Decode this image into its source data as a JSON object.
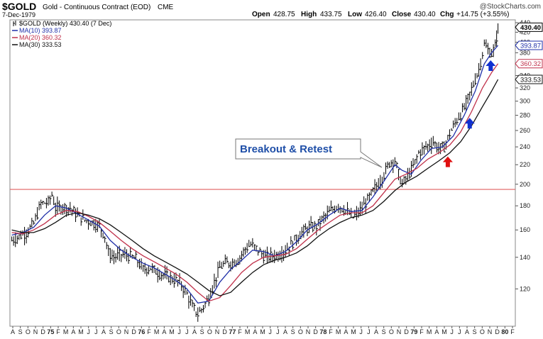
{
  "header": {
    "symbol": "$GOLD",
    "name": "Gold - Continuous Contract (EOD)",
    "exchange": "CME",
    "date": "7-Dec-1979",
    "ohlc": {
      "open_label": "Open",
      "open": "428.75",
      "high_label": "High",
      "high": "433.75",
      "low_label": "Low",
      "low": "426.40",
      "close_label": "Close",
      "close": "430.40",
      "chg_label": "Chg",
      "chg": "+14.75 (+3.55%)",
      "chg_arrow": "▲"
    },
    "watermark": "@StockCharts.com"
  },
  "legend": [
    {
      "text": "$GOLD (Weekly) 430.40 (7 Dec)",
      "color": "#000000",
      "icon": "bar-icon"
    },
    {
      "text": "MA(10) 393.87",
      "color": "#1f2fa8"
    },
    {
      "text": "MA(20) 360.32",
      "color": "#c0304a"
    },
    {
      "text": "MA(30) 333.53",
      "color": "#111111"
    }
  ],
  "annotation": {
    "text": "Breakout & Retest"
  },
  "chart_data": {
    "type": "line",
    "y_scale": "log",
    "ylim": [
      100,
      440
    ],
    "y_ticks": [
      120,
      140,
      160,
      180,
      200,
      220,
      240,
      260,
      280,
      300,
      320,
      340,
      360,
      380,
      400,
      420,
      440
    ],
    "x_range": [
      "1974-08",
      "1980-01"
    ],
    "x_tick_labels": [
      "A",
      "S",
      "O",
      "N",
      "D",
      "75",
      "F",
      "M",
      "A",
      "M",
      "J",
      "J",
      "A",
      "S",
      "O",
      "N",
      "D",
      "76",
      "F",
      "M",
      "A",
      "M",
      "J",
      "J",
      "A",
      "S",
      "O",
      "N",
      "D",
      "77",
      "F",
      "M",
      "A",
      "M",
      "J",
      "J",
      "A",
      "S",
      "O",
      "N",
      "D",
      "78",
      "F",
      "M",
      "A",
      "M",
      "J",
      "J",
      "A",
      "S",
      "O",
      "N",
      "D",
      "79",
      "F",
      "M",
      "A",
      "M",
      "J",
      "J",
      "A",
      "S",
      "O",
      "N",
      "D",
      "80",
      "F"
    ],
    "horizontal_line": {
      "value": 195,
      "color": "#e06060"
    },
    "price_labels": [
      {
        "text": "430.40",
        "value": 430.4,
        "color": "#000000",
        "fill": true
      },
      {
        "text": "393.87",
        "value": 393.87,
        "color": "#1f2fa8"
      },
      {
        "text": "360.32",
        "value": 360.32,
        "color": "#c0304a"
      },
      {
        "text": "333.53",
        "value": 333.53,
        "color": "#111111"
      }
    ],
    "arrows": [
      {
        "x": 1979.38,
        "value": 222,
        "color": "#e01010",
        "direction": "up"
      },
      {
        "x": 1979.62,
        "value": 268,
        "color": "#1030d0",
        "direction": "up"
      },
      {
        "x": 1979.85,
        "value": 355,
        "color": "#1030d0",
        "direction": "up"
      }
    ],
    "series": [
      {
        "name": "$GOLD (Weekly)",
        "kind": "bars",
        "color": "#000000",
        "points": [
          [
            1974.6,
            152
          ],
          [
            1974.68,
            155
          ],
          [
            1974.76,
            158
          ],
          [
            1974.84,
            165
          ],
          [
            1974.92,
            182
          ],
          [
            1975.0,
            183
          ],
          [
            1975.04,
            190
          ],
          [
            1975.08,
            178
          ],
          [
            1975.16,
            179
          ],
          [
            1975.24,
            178
          ],
          [
            1975.32,
            172
          ],
          [
            1975.4,
            168
          ],
          [
            1975.48,
            166
          ],
          [
            1975.56,
            163
          ],
          [
            1975.62,
            155
          ],
          [
            1975.66,
            143
          ],
          [
            1975.72,
            140
          ],
          [
            1975.8,
            142
          ],
          [
            1975.88,
            141
          ],
          [
            1975.96,
            139
          ],
          [
            1976.04,
            132
          ],
          [
            1976.12,
            133
          ],
          [
            1976.2,
            130
          ],
          [
            1976.28,
            128
          ],
          [
            1976.36,
            126
          ],
          [
            1976.44,
            124
          ],
          [
            1976.52,
            117
          ],
          [
            1976.58,
            110
          ],
          [
            1976.64,
            106
          ],
          [
            1976.7,
            110
          ],
          [
            1976.76,
            115
          ],
          [
            1976.82,
            124
          ],
          [
            1976.88,
            133
          ],
          [
            1976.94,
            136
          ],
          [
            1977.0,
            136
          ],
          [
            1977.08,
            138
          ],
          [
            1977.16,
            146
          ],
          [
            1977.22,
            149
          ],
          [
            1977.3,
            145
          ],
          [
            1977.38,
            140
          ],
          [
            1977.46,
            141
          ],
          [
            1977.54,
            142
          ],
          [
            1977.62,
            146
          ],
          [
            1977.7,
            152
          ],
          [
            1977.78,
            158
          ],
          [
            1977.86,
            162
          ],
          [
            1977.94,
            163
          ],
          [
            1978.02,
            170
          ],
          [
            1978.1,
            176
          ],
          [
            1978.18,
            180
          ],
          [
            1978.26,
            176
          ],
          [
            1978.34,
            170
          ],
          [
            1978.42,
            176
          ],
          [
            1978.5,
            185
          ],
          [
            1978.58,
            196
          ],
          [
            1978.66,
            206
          ],
          [
            1978.74,
            222
          ],
          [
            1978.8,
            225
          ],
          [
            1978.84,
            210
          ],
          [
            1978.88,
            200
          ],
          [
            1978.94,
            208
          ],
          [
            1979.0,
            218
          ],
          [
            1979.06,
            233
          ],
          [
            1979.14,
            240
          ],
          [
            1979.22,
            246
          ],
          [
            1979.28,
            238
          ],
          [
            1979.34,
            240
          ],
          [
            1979.4,
            256
          ],
          [
            1979.48,
            274
          ],
          [
            1979.56,
            290
          ],
          [
            1979.64,
            318
          ],
          [
            1979.72,
            350
          ],
          [
            1979.78,
            395
          ],
          [
            1979.82,
            385
          ],
          [
            1979.86,
            378
          ],
          [
            1979.9,
            392
          ],
          [
            1979.93,
            430
          ]
        ]
      },
      {
        "name": "MA(10)",
        "kind": "line",
        "color": "#1f2fa8",
        "points": [
          [
            1974.6,
            156
          ],
          [
            1974.72,
            158
          ],
          [
            1974.84,
            162
          ],
          [
            1974.96,
            172
          ],
          [
            1975.08,
            180
          ],
          [
            1975.2,
            178
          ],
          [
            1975.32,
            173
          ],
          [
            1975.44,
            168
          ],
          [
            1975.56,
            163
          ],
          [
            1975.68,
            152
          ],
          [
            1975.8,
            145
          ],
          [
            1975.92,
            140
          ],
          [
            1976.04,
            136
          ],
          [
            1976.16,
            133
          ],
          [
            1976.28,
            129
          ],
          [
            1976.4,
            125
          ],
          [
            1976.52,
            120
          ],
          [
            1976.64,
            112
          ],
          [
            1976.76,
            113
          ],
          [
            1976.88,
            124
          ],
          [
            1977.0,
            132
          ],
          [
            1977.12,
            138
          ],
          [
            1977.24,
            145
          ],
          [
            1977.36,
            144
          ],
          [
            1977.48,
            141
          ],
          [
            1977.6,
            144
          ],
          [
            1977.72,
            151
          ],
          [
            1977.84,
            160
          ],
          [
            1977.96,
            165
          ],
          [
            1978.08,
            172
          ],
          [
            1978.2,
            178
          ],
          [
            1978.32,
            175
          ],
          [
            1978.44,
            176
          ],
          [
            1978.56,
            188
          ],
          [
            1978.68,
            203
          ],
          [
            1978.8,
            220
          ],
          [
            1978.88,
            214
          ],
          [
            1978.98,
            210
          ],
          [
            1979.08,
            224
          ],
          [
            1979.2,
            238
          ],
          [
            1979.32,
            240
          ],
          [
            1979.44,
            253
          ],
          [
            1979.56,
            280
          ],
          [
            1979.68,
            315
          ],
          [
            1979.78,
            360
          ],
          [
            1979.86,
            380
          ],
          [
            1979.93,
            393.87
          ]
        ]
      },
      {
        "name": "MA(20)",
        "kind": "line",
        "color": "#c0304a",
        "points": [
          [
            1974.6,
            158
          ],
          [
            1974.72,
            157
          ],
          [
            1974.84,
            160
          ],
          [
            1974.96,
            165
          ],
          [
            1975.08,
            172
          ],
          [
            1975.2,
            176
          ],
          [
            1975.32,
            175
          ],
          [
            1975.44,
            171
          ],
          [
            1975.56,
            166
          ],
          [
            1975.68,
            159
          ],
          [
            1975.8,
            152
          ],
          [
            1975.92,
            146
          ],
          [
            1976.04,
            141
          ],
          [
            1976.16,
            137
          ],
          [
            1976.28,
            133
          ],
          [
            1976.4,
            129
          ],
          [
            1976.52,
            124
          ],
          [
            1976.64,
            118
          ],
          [
            1976.76,
            113
          ],
          [
            1976.88,
            115
          ],
          [
            1977.0,
            122
          ],
          [
            1977.12,
            130
          ],
          [
            1977.24,
            136
          ],
          [
            1977.36,
            140
          ],
          [
            1977.48,
            141
          ],
          [
            1977.6,
            142
          ],
          [
            1977.72,
            146
          ],
          [
            1977.84,
            153
          ],
          [
            1977.96,
            160
          ],
          [
            1978.08,
            166
          ],
          [
            1978.2,
            172
          ],
          [
            1978.32,
            174
          ],
          [
            1978.44,
            174
          ],
          [
            1978.56,
            180
          ],
          [
            1978.68,
            192
          ],
          [
            1978.8,
            205
          ],
          [
            1978.92,
            210
          ],
          [
            1979.04,
            216
          ],
          [
            1979.16,
            226
          ],
          [
            1979.28,
            233
          ],
          [
            1979.4,
            242
          ],
          [
            1979.52,
            258
          ],
          [
            1979.64,
            285
          ],
          [
            1979.76,
            320
          ],
          [
            1979.86,
            345
          ],
          [
            1979.93,
            360.32
          ]
        ]
      },
      {
        "name": "MA(30)",
        "kind": "line",
        "color": "#111111",
        "points": [
          [
            1974.6,
            160
          ],
          [
            1974.72,
            158
          ],
          [
            1974.84,
            158
          ],
          [
            1974.96,
            161
          ],
          [
            1975.08,
            166
          ],
          [
            1975.2,
            172
          ],
          [
            1975.32,
            174
          ],
          [
            1975.44,
            172
          ],
          [
            1975.56,
            169
          ],
          [
            1975.68,
            164
          ],
          [
            1975.8,
            158
          ],
          [
            1975.92,
            152
          ],
          [
            1976.04,
            146
          ],
          [
            1976.16,
            141
          ],
          [
            1976.28,
            137
          ],
          [
            1976.4,
            133
          ],
          [
            1976.52,
            129
          ],
          [
            1976.64,
            124
          ],
          [
            1976.76,
            119
          ],
          [
            1976.88,
            116
          ],
          [
            1977.0,
            118
          ],
          [
            1977.12,
            124
          ],
          [
            1977.24,
            130
          ],
          [
            1977.36,
            135
          ],
          [
            1977.48,
            138
          ],
          [
            1977.6,
            140
          ],
          [
            1977.72,
            143
          ],
          [
            1977.84,
            148
          ],
          [
            1977.96,
            155
          ],
          [
            1978.08,
            161
          ],
          [
            1978.2,
            166
          ],
          [
            1978.32,
            170
          ],
          [
            1978.44,
            172
          ],
          [
            1978.56,
            176
          ],
          [
            1978.68,
            184
          ],
          [
            1978.8,
            194
          ],
          [
            1978.92,
            202
          ],
          [
            1979.04,
            208
          ],
          [
            1979.16,
            216
          ],
          [
            1979.28,
            224
          ],
          [
            1979.4,
            233
          ],
          [
            1979.52,
            246
          ],
          [
            1979.64,
            266
          ],
          [
            1979.76,
            292
          ],
          [
            1979.86,
            315
          ],
          [
            1979.93,
            333.53
          ]
        ]
      }
    ]
  }
}
